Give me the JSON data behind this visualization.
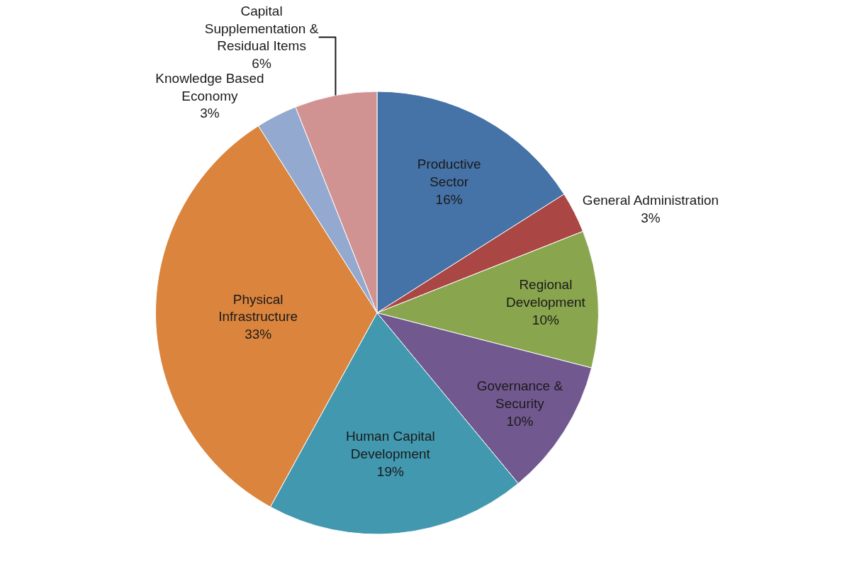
{
  "chart_data": {
    "type": "pie",
    "categories": [
      "Productive Sector",
      "General Administration",
      "Regional Development",
      "Governance & Security",
      "Human Capital Development",
      "Physical Infrastructure",
      "Knowledge Based Economy",
      "Capital Supplementation & Residual Items"
    ],
    "values": [
      16,
      3,
      10,
      10,
      19,
      33,
      3,
      6
    ],
    "value_labels": [
      "16%",
      "3%",
      "10%",
      "10%",
      "19%",
      "33%",
      "3%",
      "6%"
    ],
    "colors": [
      "#4572a7",
      "#aa4643",
      "#89a54e",
      "#71588f",
      "#4198af",
      "#db843d",
      "#93a9cf",
      "#d19392"
    ],
    "legend": false
  }
}
